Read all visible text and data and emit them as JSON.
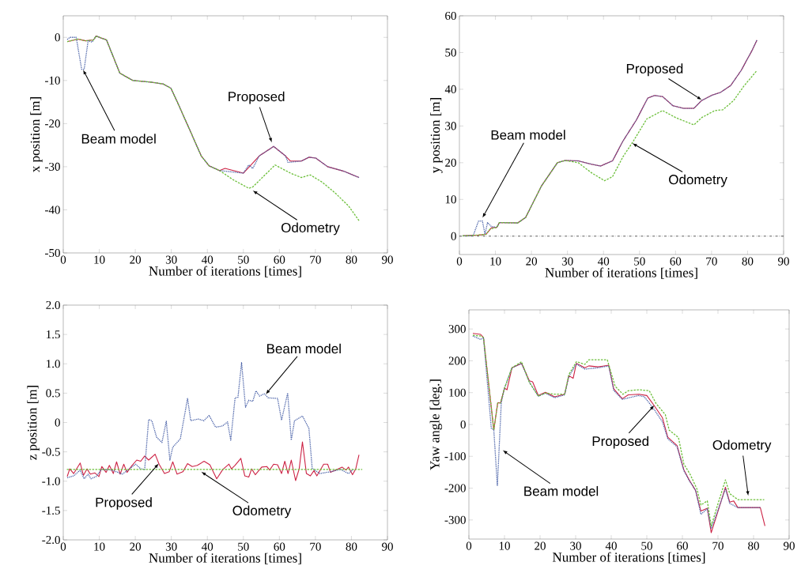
{
  "chart_data": [
    {
      "type": "line",
      "xlabel": "Number of iterations [times]",
      "ylabel": "x position [m]",
      "xlim": [
        0,
        90
      ],
      "xticks": [
        0,
        10,
        20,
        30,
        40,
        50,
        60,
        70,
        80,
        90
      ],
      "ylim": [
        -50,
        5
      ],
      "yticks": [
        -50,
        -40,
        -30,
        -20,
        -10,
        0
      ],
      "series": [
        {
          "color": "#4a62a8",
          "line_style": "dotted",
          "x": [
            1.1,
            1.8,
            3.6,
            5.1,
            5.8,
            6.9,
            8,
            9.1,
            12,
            15.7,
            19.3,
            24.5,
            27.7,
            29.9,
            32.1,
            35.4,
            38.3,
            40.5,
            43.4,
            50,
            51.5,
            52.6,
            54.4,
            58.4,
            61.7,
            62.4,
            66.1,
            68.2,
            70.1,
            73.4,
            77.7,
            82.1
          ],
          "values": [
            -0.5,
            0,
            0,
            -7.4,
            -7.4,
            -0.8,
            -1.1,
            0.3,
            -0.6,
            -8.3,
            -10,
            -10.4,
            -10.8,
            -11.8,
            -15.8,
            -22,
            -27.5,
            -29.8,
            -30.9,
            -31.5,
            -29.6,
            -30.4,
            -27.5,
            -25.3,
            -27.5,
            -29,
            -28.7,
            -27.8,
            -28,
            -30,
            -31,
            -32.5
          ]
        },
        {
          "color": "#6cbf3a",
          "line_style": "dashed",
          "x": [
            1.1,
            4,
            6.2,
            8.4,
            9.1,
            12,
            15.7,
            19.3,
            24.5,
            27.7,
            29.9,
            32.1,
            35.4,
            38.3,
            40.5,
            43.4,
            47.1,
            51.5,
            52.6,
            58.8,
            63.1,
            66.1,
            68.6,
            71.9,
            75.5,
            79.2,
            82.1
          ],
          "values": [
            -1,
            -0.4,
            -0.8,
            -0.6,
            0.3,
            -0.6,
            -8.3,
            -10,
            -10.4,
            -10.8,
            -11.8,
            -15.8,
            -22,
            -27.5,
            -29.8,
            -30.9,
            -33,
            -35,
            -34.7,
            -29.6,
            -31.5,
            -32.5,
            -31.9,
            -33.6,
            -36.1,
            -39.1,
            -42.5
          ]
        },
        {
          "color": "#cc2244",
          "line_style": "solid",
          "x": [
            1.1,
            4,
            6.2,
            8.4,
            9.1,
            12,
            15.7,
            19.3,
            24.5,
            27.7,
            29.9,
            32.1,
            35.4,
            38.3,
            40.5,
            43.4,
            44.9,
            50,
            54.4,
            58.4,
            61.7,
            63.1,
            66.1,
            68.2,
            70.1,
            73.4,
            77.7,
            82.1
          ],
          "values": [
            -1,
            -0.4,
            -0.8,
            -0.6,
            0.3,
            -0.6,
            -8.3,
            -10,
            -10.4,
            -10.8,
            -11.8,
            -15.8,
            -22,
            -27.5,
            -29.8,
            -30.9,
            -30.4,
            -31.5,
            -27.5,
            -25.3,
            -27.5,
            -28.7,
            -28.7,
            -27.8,
            -28,
            -30,
            -31,
            -32.5
          ]
        }
      ],
      "annotations": [
        {
          "text": "Beam model",
          "x": 5.5,
          "y": -7.5
        },
        {
          "text": "Proposed",
          "x": 57.9,
          "y": -24.4
        },
        {
          "text": "Odometry",
          "x": 52.6,
          "y": -35.5
        }
      ]
    },
    {
      "type": "line",
      "xlabel": "Number of iterations [times]",
      "ylabel": "y position [m]",
      "xlim": [
        0,
        90
      ],
      "xticks": [
        0,
        10,
        20,
        30,
        40,
        50,
        60,
        70,
        80,
        90
      ],
      "ylim": [
        -5,
        60
      ],
      "yticks": [
        0,
        10,
        20,
        30,
        40,
        50,
        60
      ],
      "series": [
        {
          "color": "#4a62a8",
          "line_style": "dotted",
          "x": [
            0.9,
            3.8,
            5.3,
            6.4,
            7.1,
            7.8,
            8.9,
            10.4,
            11.1,
            16.2,
            18.4,
            22.8,
            27.2,
            29.3,
            33,
            36.6,
            39.2,
            42.5,
            45.4,
            49.1,
            52.3,
            54.2,
            56.4,
            59.3,
            62.2,
            65.1,
            67.2,
            70.2,
            72.4,
            75.3,
            78.2,
            81.2,
            82.6
          ],
          "values": [
            0.1,
            0.1,
            4.1,
            4.1,
            0.5,
            3.7,
            2.6,
            2.4,
            3.7,
            3.6,
            5.1,
            13.7,
            20,
            20.6,
            20.5,
            19.6,
            19.1,
            20.5,
            25.9,
            31.6,
            37.6,
            38.3,
            38,
            35.5,
            34.8,
            34.8,
            36.9,
            38.4,
            39.1,
            41,
            45.1,
            50.5,
            53.4
          ]
        },
        {
          "color": "#6cbf3a",
          "line_style": "dashed",
          "x": [
            0.9,
            5.3,
            7.4,
            8.5,
            10.4,
            11.1,
            16.2,
            18.4,
            22.8,
            27.2,
            29.3,
            33,
            36.6,
            40.3,
            42.5,
            45.4,
            48.3,
            52,
            56.4,
            60,
            65.1,
            67.3,
            70.9,
            73.1,
            76.1,
            79,
            82.6
          ],
          "values": [
            0.1,
            0.3,
            0.5,
            1.9,
            2.4,
            3.7,
            3.6,
            5.1,
            13.7,
            20,
            20.6,
            20,
            17.3,
            15.1,
            16.2,
            21.6,
            25.9,
            31.9,
            34.2,
            32.3,
            30.3,
            32.3,
            34.2,
            34.4,
            36.9,
            40.9,
            45.1
          ]
        },
        {
          "color": "#cc2244",
          "line_style": "solid",
          "x": [
            0.9,
            5.3,
            7.4,
            8.9,
            10.4,
            11.1,
            16.2,
            18.4,
            22.8,
            27.2,
            29.3,
            33,
            36.6,
            39.2,
            42.5,
            45.4,
            49.1,
            52.3,
            54.2,
            56.4,
            59.3,
            62.2,
            65.1,
            67.2,
            70.2,
            72.4,
            75.3,
            78.2,
            81.2,
            82.6
          ],
          "values": [
            0.1,
            0.3,
            0.5,
            2.3,
            2.4,
            3.7,
            3.6,
            5.1,
            13.7,
            20,
            20.6,
            20.5,
            19.6,
            19.1,
            20.5,
            25.9,
            31.6,
            37.6,
            38.3,
            38,
            35.5,
            34.8,
            34.8,
            36.9,
            38.4,
            39.1,
            41,
            45.1,
            50.5,
            53.4
          ]
        }
      ],
      "ref_lines": [
        {
          "axis": "y",
          "value": 0,
          "color": "#333333",
          "line_style": "dashdot"
        }
      ],
      "annotations": [
        {
          "text": "Beam model",
          "x": 6.4,
          "y": 5
        },
        {
          "text": "Proposed",
          "x": 67.3,
          "y": 37.1
        },
        {
          "text": "Odometry",
          "x": 48,
          "y": 25.3
        }
      ]
    },
    {
      "type": "line",
      "xlabel": "Number of iterations [times]",
      "ylabel": "z position [m]",
      "xlim": [
        0,
        90
      ],
      "xticks": [
        0,
        10,
        20,
        30,
        40,
        50,
        60,
        70,
        80,
        90
      ],
      "ylim": [
        -2,
        2
      ],
      "yticks": [
        {
          "value": -2,
          "label": "-2.0"
        },
        {
          "value": -1.5,
          "label": "-1.5"
        },
        {
          "value": -1,
          "label": "-1.0"
        },
        {
          "value": -0.5,
          "label": "-0.5"
        },
        0,
        0.5,
        {
          "value": 1,
          "label": "1.0"
        },
        1.5,
        {
          "value": 2,
          "label": "2.0"
        }
      ],
      "series": [
        {
          "color": "#4a62a8",
          "line_style": "dotted",
          "x": [
            1.1,
            2.9,
            4.7,
            5.8,
            6.9,
            7.7,
            9.1,
            10.6,
            13.5,
            16.4,
            20.1,
            21.5,
            22.6,
            23.7,
            24.6,
            25.9,
            27.4,
            28.6,
            29.6,
            30.4,
            32.5,
            34.5,
            35.4,
            37.5,
            39,
            40.5,
            42.3,
            44.2,
            45.6,
            46.5,
            47.7,
            48.5,
            49.5,
            50.6,
            51.5,
            52.6,
            53.5,
            54.5,
            55.8,
            56.9,
            59.5,
            60.6,
            62.3,
            63.3,
            64.2,
            66.4,
            68.2,
            69.1,
            71.2,
            74.1,
            77,
            79.2,
            80.7
          ],
          "values": [
            -0.94,
            -0.91,
            -0.81,
            -0.96,
            -0.88,
            -0.96,
            -0.92,
            -0.8,
            -0.81,
            -0.88,
            -0.71,
            -0.79,
            -0.8,
            0.05,
            0.03,
            -0.25,
            -0.34,
            0.02,
            -0.64,
            -0.42,
            -0.28,
            0.41,
            0.03,
            0.06,
            0.03,
            0.12,
            -0.08,
            -0.06,
            0.01,
            -0.3,
            0.42,
            0.43,
            1.02,
            0.26,
            0.38,
            0.36,
            0.54,
            0.45,
            0.49,
            0.42,
            0.41,
            0.04,
            0.5,
            -0.3,
            0.03,
            0.11,
            -0.1,
            -0.78,
            -0.87,
            -0.84,
            -0.8,
            -0.87,
            -0.79
          ]
        },
        {
          "color": "#6cbf3a",
          "line_style": "dashed",
          "x": [
            1,
            83
          ],
          "values": [
            -0.8,
            -0.8
          ]
        },
        {
          "color": "#cc2244",
          "line_style": "solid",
          "x": [
            1.1,
            1.8,
            2.9,
            4.7,
            5.6,
            6.6,
            7.5,
            8.8,
            9.9,
            10.7,
            11.9,
            12.8,
            13.9,
            14.8,
            15.8,
            16.8,
            17.7,
            19,
            20.4,
            21.5,
            22.6,
            23.7,
            25.5,
            26.6,
            28.1,
            29.4,
            30.4,
            31.6,
            33.2,
            34.5,
            35.8,
            37.2,
            39.1,
            40.7,
            42.6,
            44.3,
            46,
            46.7,
            47.7,
            49.3,
            50.4,
            51.5,
            52.3,
            53.3,
            55.1,
            56.5,
            57.3,
            58.4,
            59.5,
            60.6,
            61.5,
            62.4,
            63.3,
            64.5,
            65.5,
            66.4,
            67.5,
            68.6,
            69.6,
            70.4,
            72.3,
            73.4,
            74.2,
            76.3,
            77.4,
            78.5,
            79.2,
            80.3,
            81.2,
            82.1
          ],
          "values": [
            -0.92,
            -0.79,
            -0.87,
            -0.69,
            -0.9,
            -0.79,
            -0.88,
            -0.86,
            -0.92,
            -0.75,
            -0.85,
            -0.73,
            -0.87,
            -0.67,
            -0.88,
            -0.71,
            -0.85,
            -0.74,
            -0.64,
            -0.66,
            -0.57,
            -0.64,
            -0.54,
            -0.71,
            -0.87,
            -0.84,
            -0.67,
            -0.88,
            -0.84,
            -0.7,
            -0.75,
            -0.73,
            -0.66,
            -0.72,
            -0.96,
            -0.8,
            -0.71,
            -0.79,
            -0.73,
            -0.61,
            -0.91,
            -0.93,
            -0.79,
            -0.89,
            -0.76,
            -0.75,
            -0.81,
            -0.71,
            -0.72,
            -0.87,
            -0.66,
            -0.87,
            -0.64,
            -0.99,
            -0.79,
            -0.33,
            -0.87,
            -0.91,
            -0.82,
            -0.91,
            -0.71,
            -0.71,
            -0.85,
            -0.79,
            -0.76,
            -0.81,
            -0.76,
            -0.89,
            -0.79,
            -0.55
          ]
        }
      ],
      "annotations": [
        {
          "text": "Beam model",
          "x": 56.2,
          "y": 0.48
        },
        {
          "text": "Proposed",
          "x": 26.5,
          "y": -0.7
        },
        {
          "text": "Odometry",
          "x": 38.3,
          "y": -0.84
        }
      ]
    },
    {
      "type": "line",
      "xlabel": "Number of iterations [times]",
      "ylabel": "Yaw angle [deg.]",
      "xlim": [
        0,
        90
      ],
      "xticks": [
        0,
        10,
        20,
        30,
        40,
        50,
        60,
        70,
        80,
        90
      ],
      "ylim": [
        -360,
        360
      ],
      "yticks": [
        -300,
        -200,
        -100,
        0,
        100,
        200,
        300
      ],
      "series": [
        {
          "color": "#4a62a8",
          "line_style": "dotted",
          "x": [
            1.1,
            3.3,
            4.1,
            6.3,
            7,
            8,
            9.1,
            10,
            12.1,
            14.8,
            17,
            19.5,
            21.5,
            24.1,
            26.9,
            28.1,
            30.2,
            32.6,
            36.3,
            39.3,
            40.7,
            43.1,
            47.8,
            49.3,
            51.9,
            54.4,
            55.9,
            58.5,
            60.4,
            61.9,
            63.7,
            65.2,
            67,
            68.1,
            70,
            72.1,
            73.3,
            75.6,
            81.9
          ],
          "values": [
            278,
            267,
            272,
            -12,
            -17,
            -193,
            68,
            114,
            178,
            192,
            133,
            89,
            98,
            84,
            93,
            151,
            190,
            174,
            178,
            184,
            107,
            79,
            91,
            87,
            50,
            8,
            -45,
            -70,
            -145,
            -176,
            -207,
            -282,
            -265,
            -327,
            -269,
            -202,
            -248,
            -261,
            -261
          ]
        },
        {
          "color": "#6cbf3a",
          "line_style": "dashed",
          "x": [
            1.1,
            3.3,
            4.1,
            7,
            8.1,
            8.9,
            10,
            12.1,
            14.8,
            17,
            19.5,
            21.5,
            24.1,
            26.9,
            28.1,
            30.2,
            32.6,
            33.7,
            38.9,
            41.1,
            43.3,
            44.8,
            47.8,
            50.7,
            52.6,
            55.2,
            56.3,
            58.9,
            60.4,
            62.2,
            64.1,
            65.2,
            67,
            68.1,
            70,
            72.1,
            73.3,
            75.6,
            83
          ],
          "values": [
            280,
            278,
            273,
            -17,
            68,
            68,
            114,
            178,
            197,
            132,
            89,
            99,
            95,
            95,
            157,
            197,
            189,
            203,
            203,
            120,
            95,
            106,
            109,
            106,
            66,
            31,
            -18,
            -41,
            -124,
            -157,
            -203,
            -253,
            -240,
            -319,
            -249,
            -174,
            -217,
            -236,
            -236
          ]
        },
        {
          "color": "#cc2244",
          "line_style": "solid",
          "x": [
            1.1,
            3.3,
            4.1,
            7,
            8.1,
            8.9,
            10,
            10.7,
            12.1,
            14.8,
            17,
            17.9,
            19.5,
            21.5,
            24.1,
            26.9,
            28.1,
            29.3,
            30.2,
            32.6,
            33.7,
            36.3,
            39.3,
            40.7,
            43.1,
            44.8,
            47.8,
            50,
            51.9,
            54.4,
            55.9,
            58.5,
            60.4,
            61.9,
            63.7,
            65.2,
            67,
            68.1,
            70,
            72.1,
            73.3,
            74.4,
            75.6,
            81.9,
            83.2
          ],
          "values": [
            286,
            283,
            273,
            -17,
            68,
            68,
            114,
            109,
            178,
            192,
            137,
            134,
            91,
            101,
            87,
            95,
            153,
            145,
            192,
            178,
            184,
            181,
            186,
            112,
            81,
            93,
            95,
            91,
            62,
            21,
            -40,
            -66,
            -142,
            -174,
            -207,
            -272,
            -263,
            -340,
            -273,
            -197,
            -244,
            -240,
            -261,
            -261,
            -319
          ]
        }
      ],
      "annotations": [
        {
          "text": "Beam model",
          "x": 9.5,
          "y": -81
        },
        {
          "text": "Proposed",
          "x": 52.1,
          "y": 60
        },
        {
          "text": "Odometry",
          "x": 78.5,
          "y": -224
        }
      ]
    }
  ]
}
